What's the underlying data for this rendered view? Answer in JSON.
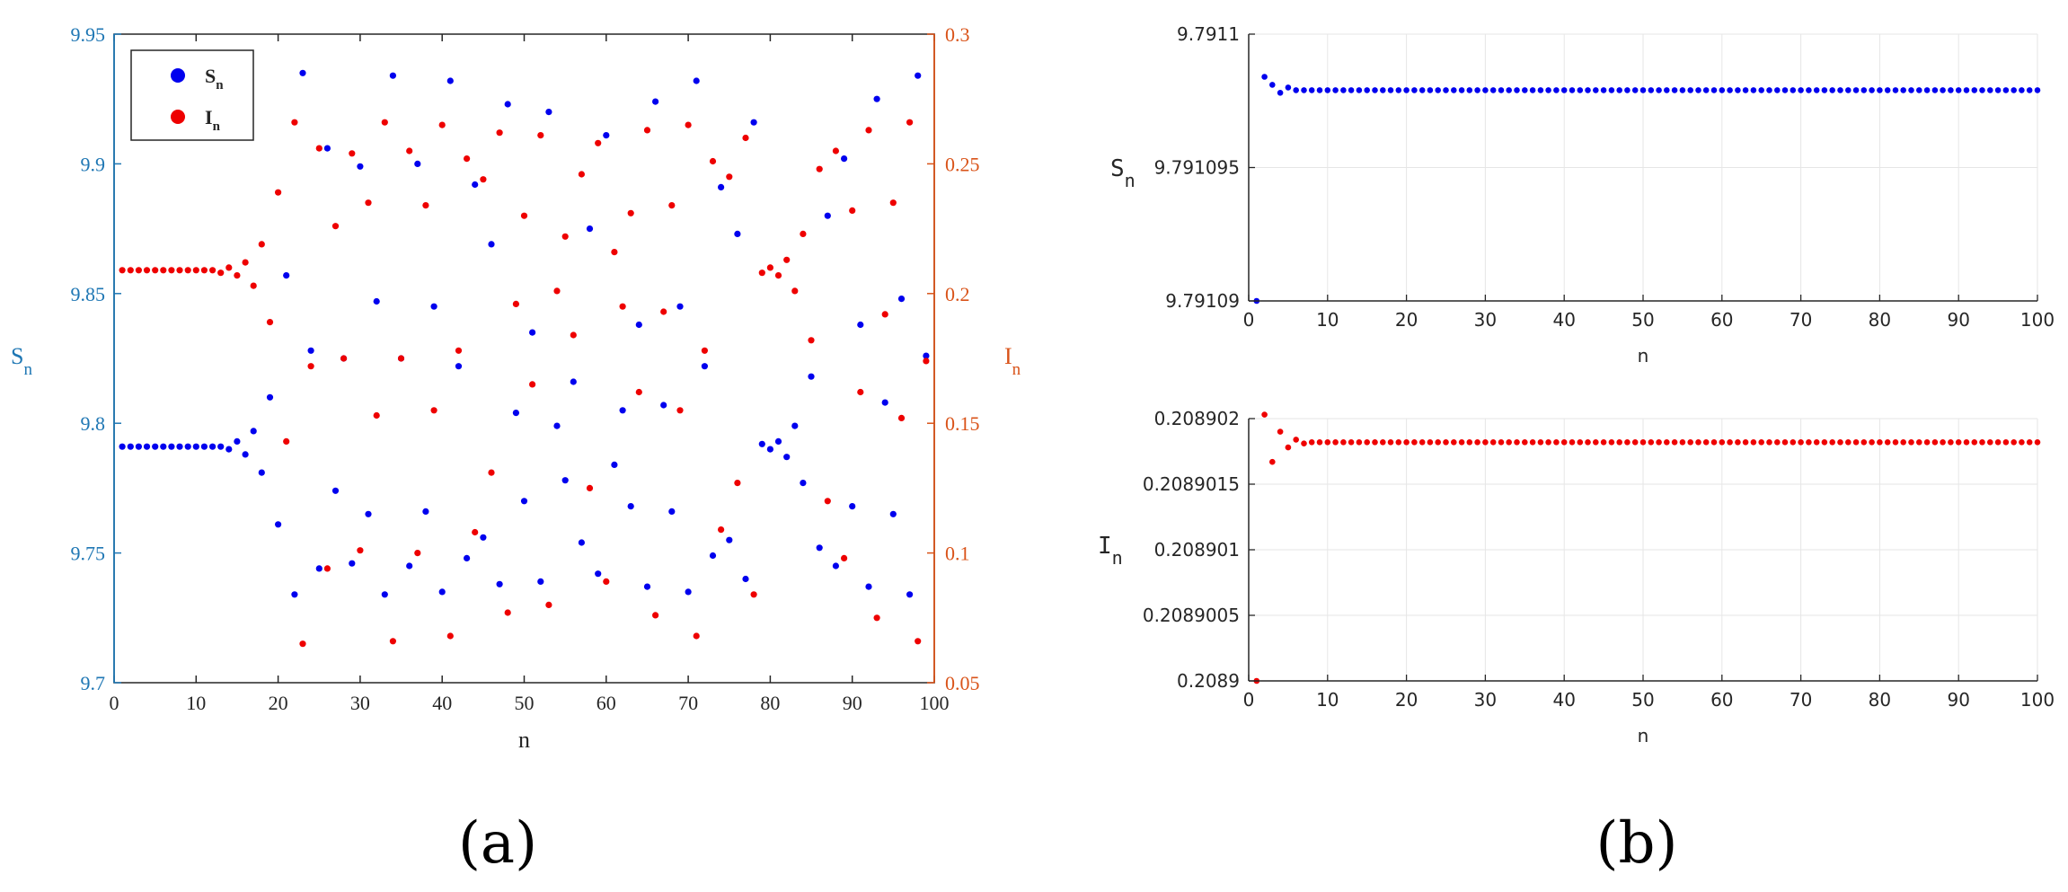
{
  "colors": {
    "s_series": "#0000ee",
    "i_series": "#ee0000",
    "left_axis_a": "#1f77b4",
    "right_axis_a": "#d95319",
    "axis_b": "#262626",
    "grid": "#e6e6e6"
  },
  "chart_data": [
    {
      "panel": "a",
      "panel_label": "(a)",
      "type": "scatter",
      "xlabel": "n",
      "ylabel_left": {
        "base": "S",
        "sub": "n"
      },
      "ylabel_right": {
        "base": "I",
        "sub": "n"
      },
      "xlim": [
        0,
        100
      ],
      "xticks": [
        "0",
        "10",
        "20",
        "30",
        "40",
        "50",
        "60",
        "70",
        "80",
        "90",
        "100"
      ],
      "ylim_left": [
        9.7,
        9.95
      ],
      "yticks_left": [
        "9.7",
        "9.75",
        "9.8",
        "9.85",
        "9.9",
        "9.95"
      ],
      "ylim_right": [
        0.05,
        0.3
      ],
      "yticks_right": [
        "0.05",
        "0.1",
        "0.15",
        "0.2",
        "0.25",
        "0.3"
      ],
      "grid": false,
      "legend": {
        "placement": "top-left",
        "entries": [
          {
            "base": "S",
            "sub": "n"
          },
          {
            "base": "I",
            "sub": "n"
          }
        ]
      },
      "series": [
        {
          "axis": "left",
          "x": [
            1,
            2,
            3,
            4,
            5,
            6,
            7,
            8,
            9,
            10,
            11,
            12,
            13,
            14,
            15,
            16,
            17,
            18,
            19,
            20,
            21,
            22,
            23,
            24,
            25,
            26,
            27,
            28,
            29,
            30,
            31,
            32,
            33,
            34,
            35,
            36,
            37,
            38,
            39,
            40,
            41,
            42,
            43,
            44,
            45,
            46,
            47,
            48,
            49,
            50,
            51,
            52,
            53,
            54,
            55,
            56,
            57,
            58,
            59,
            60,
            61,
            62,
            63,
            64,
            65,
            66,
            67,
            68,
            69,
            70,
            71,
            72,
            73,
            74,
            75,
            76,
            77,
            78,
            79,
            80,
            81,
            82,
            83,
            84,
            85,
            86,
            87,
            88,
            89,
            90,
            91,
            92,
            93,
            94,
            95,
            96,
            97,
            98,
            99
          ],
          "y": [
            9.791,
            9.791,
            9.791,
            9.791,
            9.791,
            9.791,
            9.791,
            9.791,
            9.791,
            9.791,
            9.791,
            9.791,
            9.791,
            9.79,
            9.793,
            9.788,
            9.797,
            9.781,
            9.81,
            9.761,
            9.857,
            9.734,
            9.935,
            9.828,
            9.744,
            9.906,
            9.774,
            9.825,
            9.746,
            9.899,
            9.765,
            9.847,
            9.734,
            9.934,
            9.825,
            9.745,
            9.9,
            9.766,
            9.845,
            9.735,
            9.932,
            9.822,
            9.748,
            9.892,
            9.756,
            9.869,
            9.738,
            9.923,
            9.804,
            9.77,
            9.835,
            9.739,
            9.92,
            9.799,
            9.778,
            9.816,
            9.754,
            9.875,
            9.742,
            9.911,
            9.784,
            9.805,
            9.768,
            9.838,
            9.737,
            9.924,
            9.807,
            9.766,
            9.845,
            9.735,
            9.932,
            9.822,
            9.749,
            9.891,
            9.755,
            9.873,
            9.74,
            9.916,
            9.792,
            9.79,
            9.793,
            9.787,
            9.799,
            9.777,
            9.818,
            9.752,
            9.88,
            9.745,
            9.902,
            9.768,
            9.838,
            9.737,
            9.925,
            9.808,
            9.765,
            9.848,
            9.734,
            9.934,
            9.826
          ]
        },
        {
          "axis": "right",
          "x": [
            1,
            2,
            3,
            4,
            5,
            6,
            7,
            8,
            9,
            10,
            11,
            12,
            13,
            14,
            15,
            16,
            17,
            18,
            19,
            20,
            21,
            22,
            23,
            24,
            25,
            26,
            27,
            28,
            29,
            30,
            31,
            32,
            33,
            34,
            35,
            36,
            37,
            38,
            39,
            40,
            41,
            42,
            43,
            44,
            45,
            46,
            47,
            48,
            49,
            50,
            51,
            52,
            53,
            54,
            55,
            56,
            57,
            58,
            59,
            60,
            61,
            62,
            63,
            64,
            65,
            66,
            67,
            68,
            69,
            70,
            71,
            72,
            73,
            74,
            75,
            76,
            77,
            78,
            79,
            80,
            81,
            82,
            83,
            84,
            85,
            86,
            87,
            88,
            89,
            90,
            91,
            92,
            93,
            94,
            95,
            96,
            97,
            98,
            99
          ],
          "y": [
            0.209,
            0.209,
            0.209,
            0.209,
            0.209,
            0.209,
            0.209,
            0.209,
            0.209,
            0.209,
            0.209,
            0.209,
            0.208,
            0.21,
            0.207,
            0.212,
            0.203,
            0.219,
            0.189,
            0.239,
            0.143,
            0.266,
            0.065,
            0.172,
            0.256,
            0.094,
            0.226,
            0.175,
            0.254,
            0.101,
            0.235,
            0.153,
            0.266,
            0.066,
            0.175,
            0.255,
            0.1,
            0.234,
            0.155,
            0.265,
            0.068,
            0.178,
            0.252,
            0.108,
            0.244,
            0.131,
            0.262,
            0.077,
            0.196,
            0.23,
            0.165,
            0.261,
            0.08,
            0.201,
            0.222,
            0.184,
            0.246,
            0.125,
            0.258,
            0.089,
            0.216,
            0.195,
            0.231,
            0.162,
            0.263,
            0.076,
            0.193,
            0.234,
            0.155,
            0.265,
            0.068,
            0.178,
            0.251,
            0.109,
            0.245,
            0.127,
            0.26,
            0.084,
            0.208,
            0.21,
            0.207,
            0.213,
            0.201,
            0.223,
            0.182,
            0.248,
            0.12,
            0.255,
            0.098,
            0.232,
            0.162,
            0.263,
            0.075,
            0.192,
            0.235,
            0.152,
            0.266,
            0.066,
            0.174
          ]
        }
      ]
    },
    {
      "panel": "b-top",
      "type": "scatter",
      "xlabel": "n",
      "ylabel": {
        "base": "S",
        "sub": "n"
      },
      "xlim": [
        0,
        100
      ],
      "xticks": [
        "0",
        "10",
        "20",
        "30",
        "40",
        "50",
        "60",
        "70",
        "80",
        "90",
        "100"
      ],
      "ylim": [
        9.79109,
        9.7911
      ],
      "yticks": [
        "9.79109",
        "9.791095",
        "9.7911"
      ],
      "grid": true,
      "series": [
        {
          "x": [
            1,
            2,
            3,
            4,
            5,
            6,
            7,
            8,
            9,
            10,
            11,
            12,
            13,
            14,
            15,
            16,
            17,
            18,
            19,
            20,
            21,
            22,
            23,
            24,
            25,
            26,
            27,
            28,
            29,
            30,
            31,
            32,
            33,
            34,
            35,
            36,
            37,
            38,
            39,
            40,
            41,
            42,
            43,
            44,
            45,
            46,
            47,
            48,
            49,
            50,
            51,
            52,
            53,
            54,
            55,
            56,
            57,
            58,
            59,
            60,
            61,
            62,
            63,
            64,
            65,
            66,
            67,
            68,
            69,
            70,
            71,
            72,
            73,
            74,
            75,
            76,
            77,
            78,
            79,
            80,
            81,
            82,
            83,
            84,
            85,
            86,
            87,
            88,
            89,
            90,
            91,
            92,
            93,
            94,
            95,
            96,
            97,
            98,
            99,
            100
          ],
          "y": [
            9.79109,
            9.7910984,
            9.7910981,
            9.7910978,
            9.791098,
            9.7910979,
            9.7910979,
            9.7910979,
            9.7910979,
            9.7910979,
            9.7910979,
            9.7910979,
            9.7910979,
            9.7910979,
            9.7910979,
            9.7910979,
            9.7910979,
            9.7910979,
            9.7910979,
            9.7910979,
            9.7910979,
            9.7910979,
            9.7910979,
            9.7910979,
            9.7910979,
            9.7910979,
            9.7910979,
            9.7910979,
            9.7910979,
            9.7910979,
            9.7910979,
            9.7910979,
            9.7910979,
            9.7910979,
            9.7910979,
            9.7910979,
            9.7910979,
            9.7910979,
            9.7910979,
            9.7910979,
            9.7910979,
            9.7910979,
            9.7910979,
            9.7910979,
            9.7910979,
            9.7910979,
            9.7910979,
            9.7910979,
            9.7910979,
            9.7910979,
            9.7910979,
            9.7910979,
            9.7910979,
            9.7910979,
            9.7910979,
            9.7910979,
            9.7910979,
            9.7910979,
            9.7910979,
            9.7910979,
            9.7910979,
            9.7910979,
            9.7910979,
            9.7910979,
            9.7910979,
            9.7910979,
            9.7910979,
            9.7910979,
            9.7910979,
            9.7910979,
            9.7910979,
            9.7910979,
            9.7910979,
            9.7910979,
            9.7910979,
            9.7910979,
            9.7910979,
            9.7910979,
            9.7910979,
            9.7910979,
            9.7910979,
            9.7910979,
            9.7910979,
            9.7910979,
            9.7910979,
            9.7910979,
            9.7910979,
            9.7910979,
            9.7910979,
            9.7910979,
            9.7910979,
            9.7910979,
            9.7910979,
            9.7910979,
            9.7910979,
            9.7910979,
            9.7910979,
            9.7910979,
            9.7910979,
            9.7910979
          ]
        }
      ]
    },
    {
      "panel": "b-bottom",
      "panel_label": "(b)",
      "type": "scatter",
      "xlabel": "n",
      "ylabel": {
        "base": "I",
        "sub": "n"
      },
      "xlim": [
        0,
        100
      ],
      "xticks": [
        "0",
        "10",
        "20",
        "30",
        "40",
        "50",
        "60",
        "70",
        "80",
        "90",
        "100"
      ],
      "ylim": [
        0.2089,
        0.208902
      ],
      "yticks": [
        "0.2089",
        "0.2089005",
        "0.208901",
        "0.2089015",
        "0.208902"
      ],
      "grid": true,
      "series": [
        {
          "x": [
            1,
            2,
            3,
            4,
            5,
            6,
            7,
            8,
            9,
            10,
            11,
            12,
            13,
            14,
            15,
            16,
            17,
            18,
            19,
            20,
            21,
            22,
            23,
            24,
            25,
            26,
            27,
            28,
            29,
            30,
            31,
            32,
            33,
            34,
            35,
            36,
            37,
            38,
            39,
            40,
            41,
            42,
            43,
            44,
            45,
            46,
            47,
            48,
            49,
            50,
            51,
            52,
            53,
            54,
            55,
            56,
            57,
            58,
            59,
            60,
            61,
            62,
            63,
            64,
            65,
            66,
            67,
            68,
            69,
            70,
            71,
            72,
            73,
            74,
            75,
            76,
            77,
            78,
            79,
            80,
            81,
            82,
            83,
            84,
            85,
            86,
            87,
            88,
            89,
            90,
            91,
            92,
            93,
            94,
            95,
            96,
            97,
            98,
            99,
            100
          ],
          "y": [
            0.2089,
            0.20890203,
            0.20890167,
            0.2089019,
            0.20890178,
            0.20890184,
            0.20890181,
            0.20890182,
            0.20890182,
            0.20890182,
            0.20890182,
            0.20890182,
            0.20890182,
            0.20890182,
            0.20890182,
            0.20890182,
            0.20890182,
            0.20890182,
            0.20890182,
            0.20890182,
            0.20890182,
            0.20890182,
            0.20890182,
            0.20890182,
            0.20890182,
            0.20890182,
            0.20890182,
            0.20890182,
            0.20890182,
            0.20890182,
            0.20890182,
            0.20890182,
            0.20890182,
            0.20890182,
            0.20890182,
            0.20890182,
            0.20890182,
            0.20890182,
            0.20890182,
            0.20890182,
            0.20890182,
            0.20890182,
            0.20890182,
            0.20890182,
            0.20890182,
            0.20890182,
            0.20890182,
            0.20890182,
            0.20890182,
            0.20890182,
            0.20890182,
            0.20890182,
            0.20890182,
            0.20890182,
            0.20890182,
            0.20890182,
            0.20890182,
            0.20890182,
            0.20890182,
            0.20890182,
            0.20890182,
            0.20890182,
            0.20890182,
            0.20890182,
            0.20890182,
            0.20890182,
            0.20890182,
            0.20890182,
            0.20890182,
            0.20890182,
            0.20890182,
            0.20890182,
            0.20890182,
            0.20890182,
            0.20890182,
            0.20890182,
            0.20890182,
            0.20890182,
            0.20890182,
            0.20890182,
            0.20890182,
            0.20890182,
            0.20890182,
            0.20890182,
            0.20890182,
            0.20890182,
            0.20890182,
            0.20890182,
            0.20890182,
            0.20890182,
            0.20890182,
            0.20890182,
            0.20890182,
            0.20890182,
            0.20890182,
            0.20890182,
            0.20890182,
            0.20890182,
            0.20890182,
            0.20890182
          ]
        }
      ]
    }
  ]
}
